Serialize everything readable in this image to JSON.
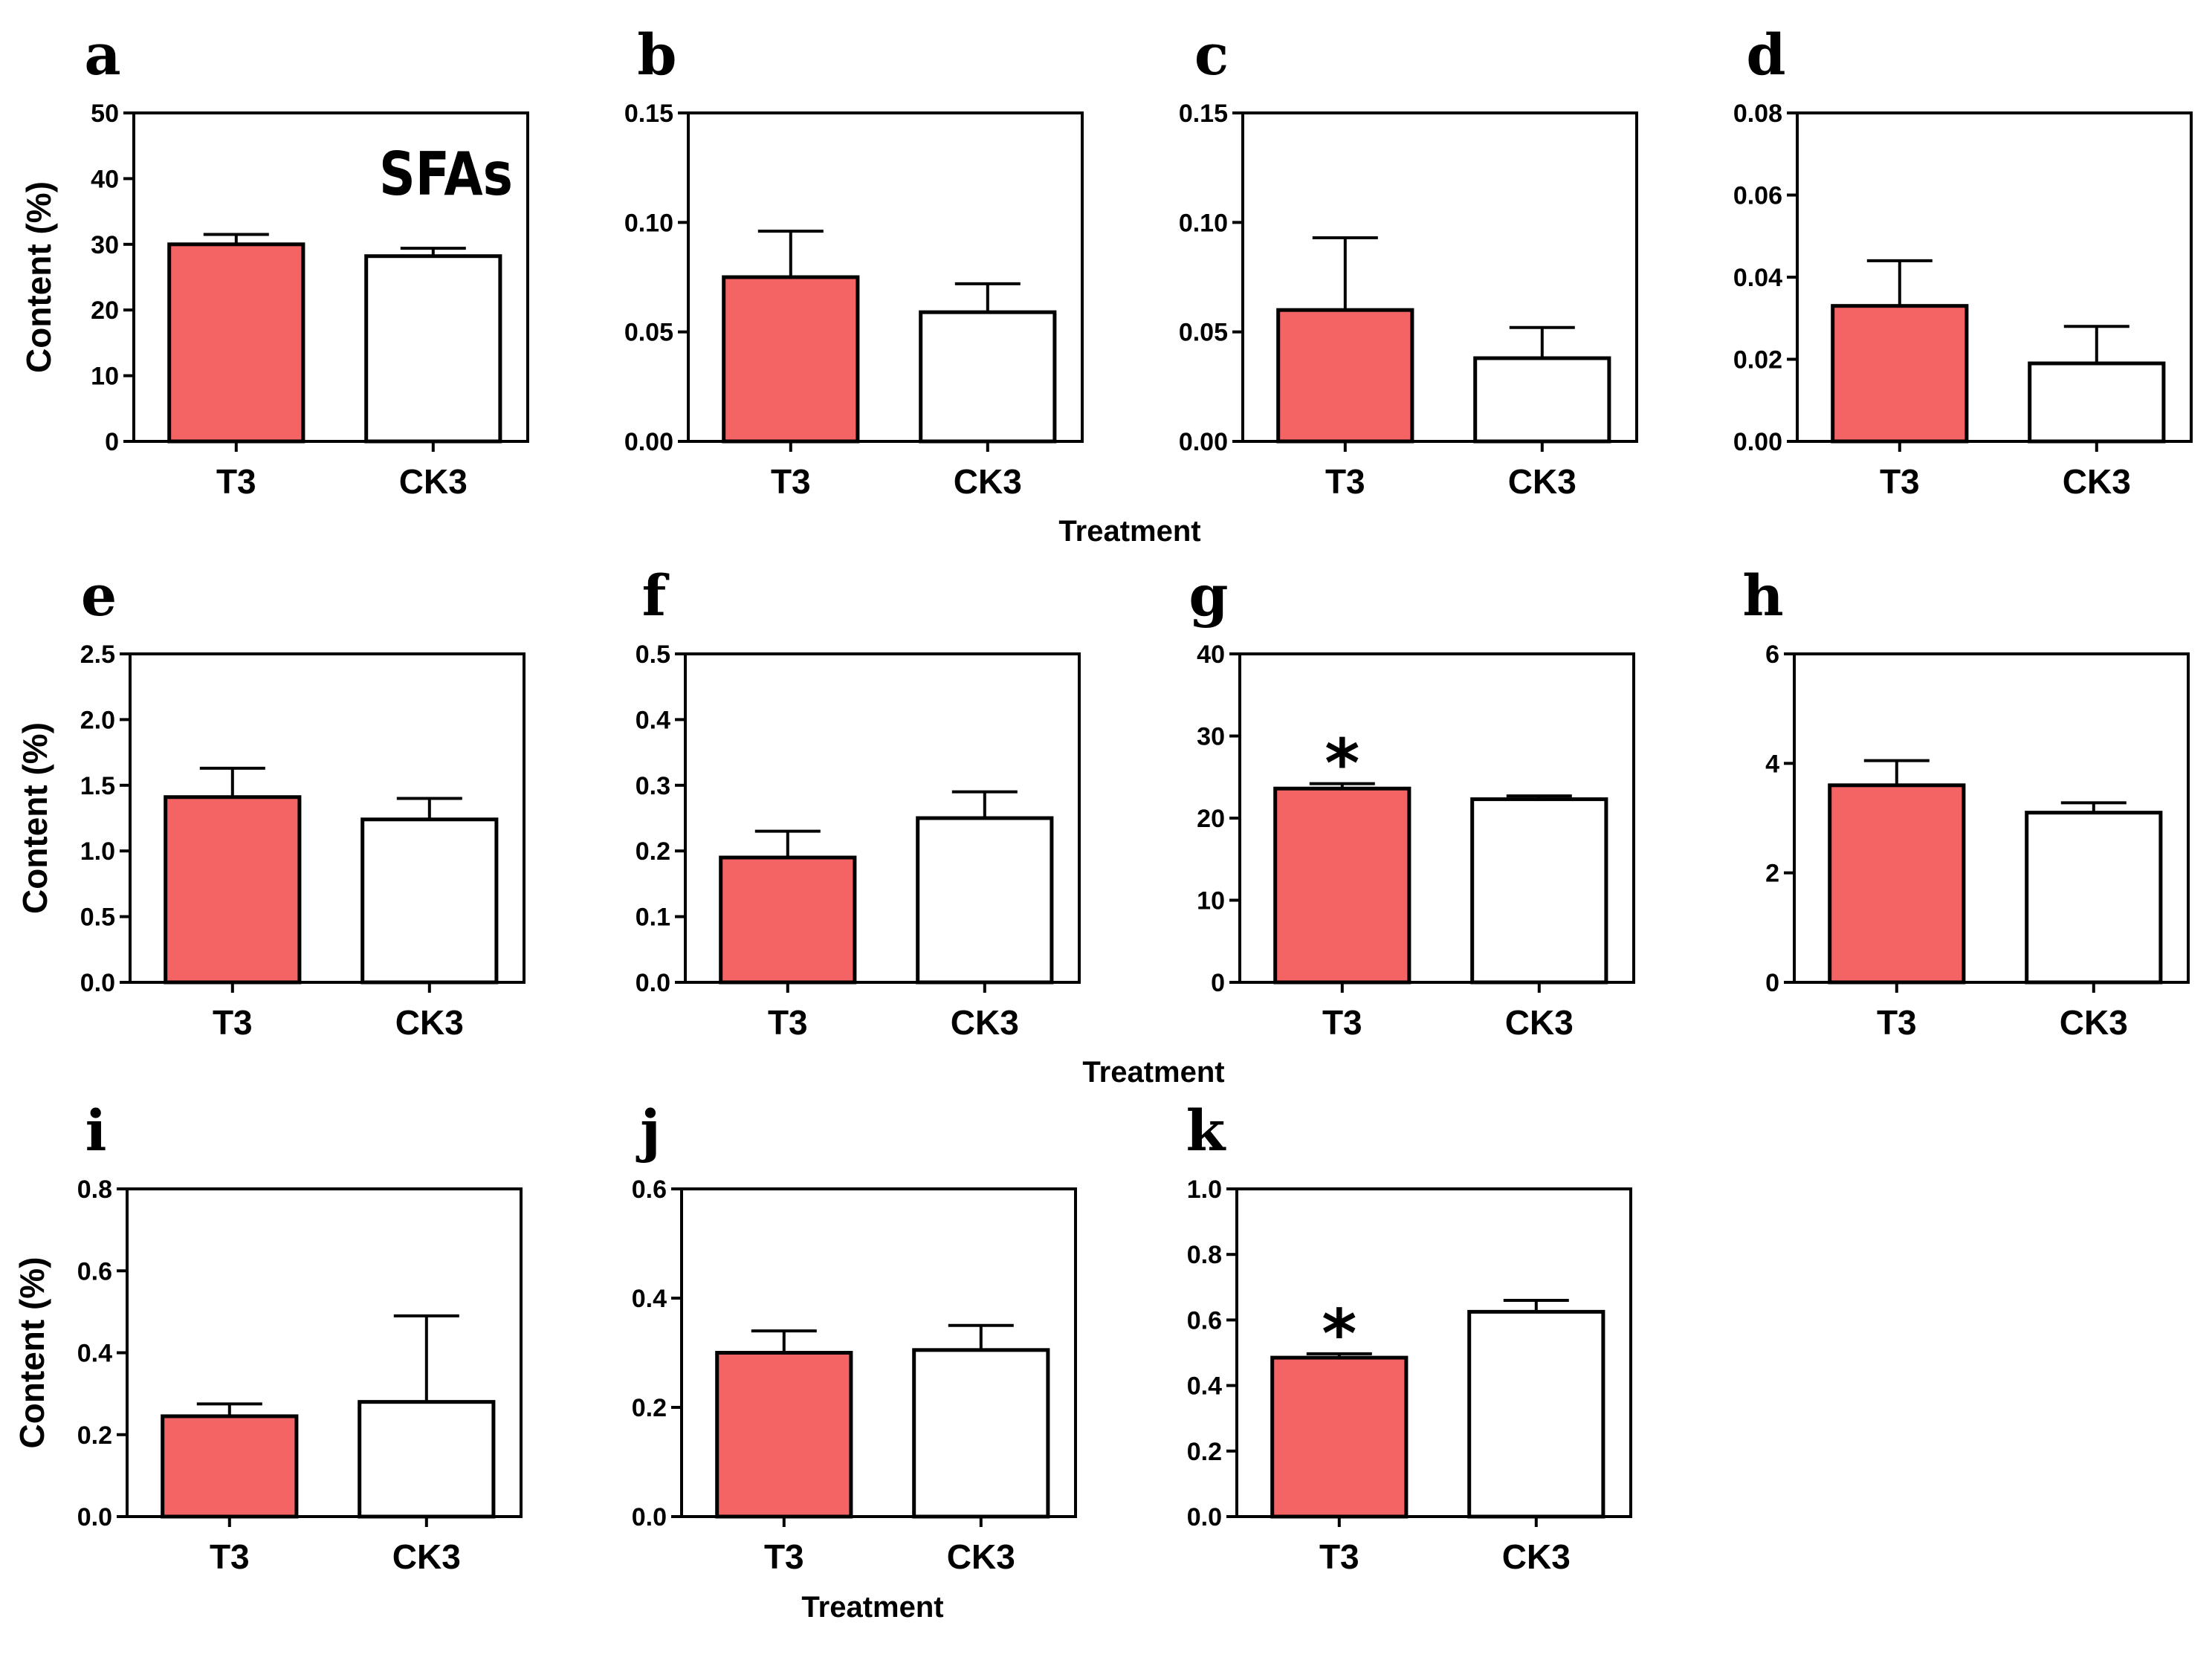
{
  "colors": {
    "treatment": "#f46464",
    "control": "#ffffff",
    "stroke": "#000000"
  },
  "chart_data": [
    {
      "id": "a",
      "type": "bar",
      "letter": "a",
      "title": "",
      "inset": "SFAs",
      "ylabel": "Content (%)",
      "xlabel": "",
      "categories": [
        "T3",
        "CK3"
      ],
      "values": [
        30.0,
        28.2
      ],
      "errors": [
        1.5,
        1.2
      ],
      "ylim": [
        0,
        50
      ],
      "yticks": [
        "0",
        "10",
        "20",
        "30",
        "40",
        "50"
      ],
      "significance": [
        "",
        ""
      ]
    },
    {
      "id": "b",
      "type": "bar",
      "letter": "b",
      "title": "",
      "inset": "",
      "ylabel": "",
      "xlabel": "",
      "categories": [
        "T3",
        "CK3"
      ],
      "values": [
        0.075,
        0.059
      ],
      "errors": [
        0.021,
        0.013
      ],
      "ylim": [
        0,
        0.15
      ],
      "yticks": [
        "0.00",
        "0.05",
        "0.10",
        "0.15"
      ],
      "significance": [
        "",
        ""
      ]
    },
    {
      "id": "c",
      "type": "bar",
      "letter": "c",
      "title": "",
      "inset": "",
      "ylabel": "",
      "xlabel": "Treatment",
      "categories": [
        "T3",
        "CK3"
      ],
      "values": [
        0.06,
        0.038
      ],
      "errors": [
        0.033,
        0.014
      ],
      "ylim": [
        0,
        0.15
      ],
      "yticks": [
        "0.00",
        "0.05",
        "0.10",
        "0.15"
      ],
      "significance": [
        "",
        ""
      ]
    },
    {
      "id": "d",
      "type": "bar",
      "letter": "d",
      "title": "",
      "inset": "",
      "ylabel": "",
      "xlabel": "",
      "categories": [
        "T3",
        "CK3"
      ],
      "values": [
        0.033,
        0.019
      ],
      "errors": [
        0.011,
        0.009
      ],
      "ylim": [
        0,
        0.08
      ],
      "yticks": [
        "0.00",
        "0.02",
        "0.04",
        "0.06",
        "0.08"
      ],
      "significance": [
        "",
        ""
      ]
    },
    {
      "id": "e",
      "type": "bar",
      "letter": "e",
      "title": "",
      "inset": "",
      "ylabel": "Content (%)",
      "xlabel": "",
      "categories": [
        "T3",
        "CK3"
      ],
      "values": [
        1.41,
        1.24
      ],
      "errors": [
        0.22,
        0.16
      ],
      "ylim": [
        0,
        2.5
      ],
      "yticks": [
        "0.0",
        "0.5",
        "1.0",
        "1.5",
        "2.0",
        "2.5"
      ],
      "significance": [
        "",
        ""
      ]
    },
    {
      "id": "f",
      "type": "bar",
      "letter": "f",
      "title": "",
      "inset": "",
      "ylabel": "",
      "xlabel": "",
      "categories": [
        "T3",
        "CK3"
      ],
      "values": [
        0.19,
        0.25
      ],
      "errors": [
        0.04,
        0.04
      ],
      "ylim": [
        0,
        0.5
      ],
      "yticks": [
        "0.0",
        "0.1",
        "0.2",
        "0.3",
        "0.4",
        "0.5"
      ],
      "significance": [
        "",
        ""
      ]
    },
    {
      "id": "g",
      "type": "bar",
      "letter": "g",
      "title": "",
      "inset": "",
      "ylabel": "",
      "xlabel": "Treatment",
      "categories": [
        "T3",
        "CK3"
      ],
      "values": [
        23.6,
        22.3
      ],
      "errors": [
        0.6,
        0.4
      ],
      "ylim": [
        0,
        40
      ],
      "yticks": [
        "0",
        "10",
        "20",
        "30",
        "40"
      ],
      "significance": [
        "*",
        ""
      ]
    },
    {
      "id": "h",
      "type": "bar",
      "letter": "h",
      "title": "",
      "inset": "",
      "ylabel": "",
      "xlabel": "",
      "categories": [
        "T3",
        "CK3"
      ],
      "values": [
        3.6,
        3.1
      ],
      "errors": [
        0.45,
        0.18
      ],
      "ylim": [
        0,
        6
      ],
      "yticks": [
        "0",
        "2",
        "4",
        "6"
      ],
      "significance": [
        "",
        ""
      ]
    },
    {
      "id": "i",
      "type": "bar",
      "letter": "i",
      "title": "",
      "inset": "",
      "ylabel": "Content (%)",
      "xlabel": "",
      "categories": [
        "T3",
        "CK3"
      ],
      "values": [
        0.245,
        0.28
      ],
      "errors": [
        0.03,
        0.21
      ],
      "ylim": [
        0,
        0.8
      ],
      "yticks": [
        "0.0",
        "0.2",
        "0.4",
        "0.6",
        "0.8"
      ],
      "significance": [
        "",
        ""
      ]
    },
    {
      "id": "j",
      "type": "bar",
      "letter": "j",
      "title": "",
      "inset": "",
      "ylabel": "",
      "xlabel": "Treatment",
      "categories": [
        "T3",
        "CK3"
      ],
      "values": [
        0.3,
        0.305
      ],
      "errors": [
        0.04,
        0.045
      ],
      "ylim": [
        0,
        0.6
      ],
      "yticks": [
        "0.0",
        "0.2",
        "0.4",
        "0.6"
      ],
      "significance": [
        "",
        ""
      ]
    },
    {
      "id": "k",
      "type": "bar",
      "letter": "k",
      "title": "",
      "inset": "",
      "ylabel": "",
      "xlabel": "",
      "categories": [
        "T3",
        "CK3"
      ],
      "values": [
        0.485,
        0.625
      ],
      "errors": [
        0.012,
        0.035
      ],
      "ylim": [
        0,
        1.0
      ],
      "yticks": [
        "0.0",
        "0.2",
        "0.4",
        "0.6",
        "0.8",
        "1.0"
      ],
      "significance": [
        "*",
        ""
      ]
    }
  ]
}
